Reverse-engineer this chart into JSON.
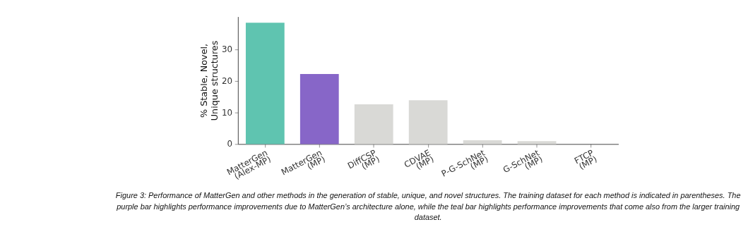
{
  "chart_data": {
    "type": "bar",
    "categories": [
      "MatterGen (Alex-MP)",
      "MatterGen (MP)",
      "DiffCSP (MP)",
      "CDVAE (MP)",
      "P-G-SchNet (MP)",
      "G-SchNet (MP)",
      "FTCP (MP)"
    ],
    "values": [
      38.5,
      22.2,
      12.6,
      13.9,
      1.2,
      0.9,
      0
    ],
    "colors": [
      "#5fc4b0",
      "#8766c8",
      "#d9d9d6",
      "#d9d9d6",
      "#d9d9d6",
      "#d9d9d6",
      "#d9d9d6"
    ],
    "ylabel": "% Stable, Novel, Unique structures",
    "ylim": [
      0,
      40.4
    ],
    "yticks": [
      0,
      10,
      20,
      30
    ],
    "grid": false,
    "annotations": [
      "Figure 3: Performance of MatterGen and other methods in the generation of stable, unique, and novel structures. The training dataset for each method is indicated in parentheses. The purple bar highlights performance improvements due to MatterGen’s architecture alone, while the teal bar highlights performance improvements that come also from the larger training dataset."
    ]
  }
}
